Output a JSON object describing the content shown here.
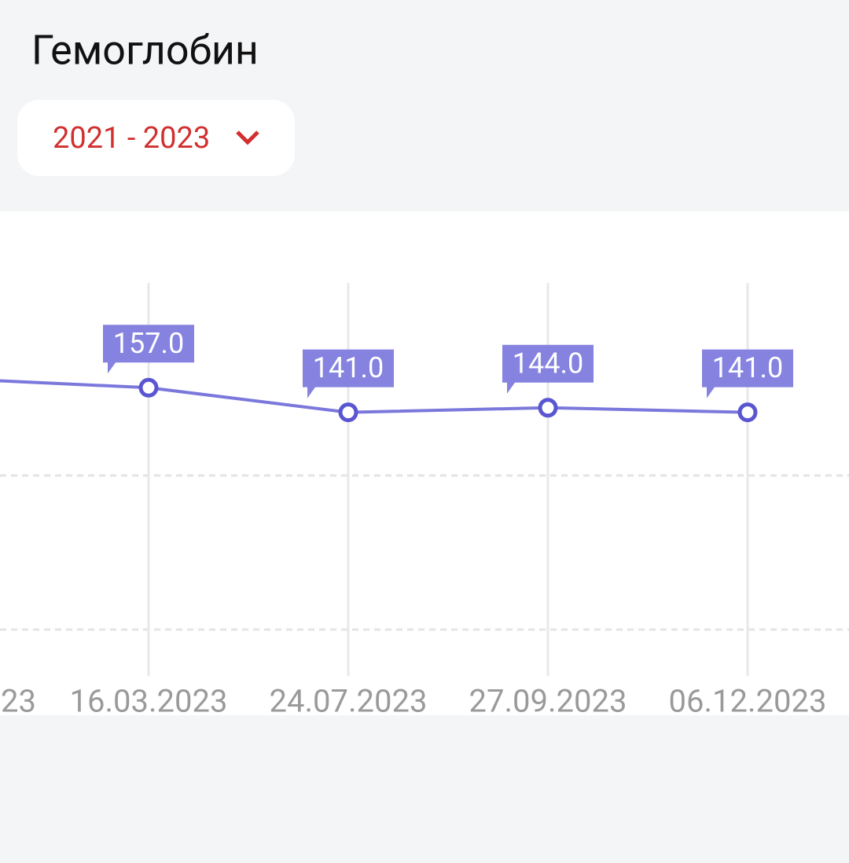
{
  "header": {
    "title": "Гемоглобин",
    "period": "2021 - 2023"
  },
  "chart_data": {
    "type": "line",
    "categories": [
      "23",
      "16.03.2023",
      "24.07.2023",
      "27.09.2023",
      "06.12.2023"
    ],
    "series": [
      {
        "color": "#7b78dc",
        "values": [
          163,
          157,
          141,
          144,
          141
        ],
        "value_labels": [
          null,
          "157.0",
          "141.0",
          "144.0",
          "141.0"
        ]
      }
    ],
    "ylim": [
      0,
      225
    ],
    "yticks": [
      0,
      100
    ],
    "ytick_labels": false,
    "grid": true
  }
}
